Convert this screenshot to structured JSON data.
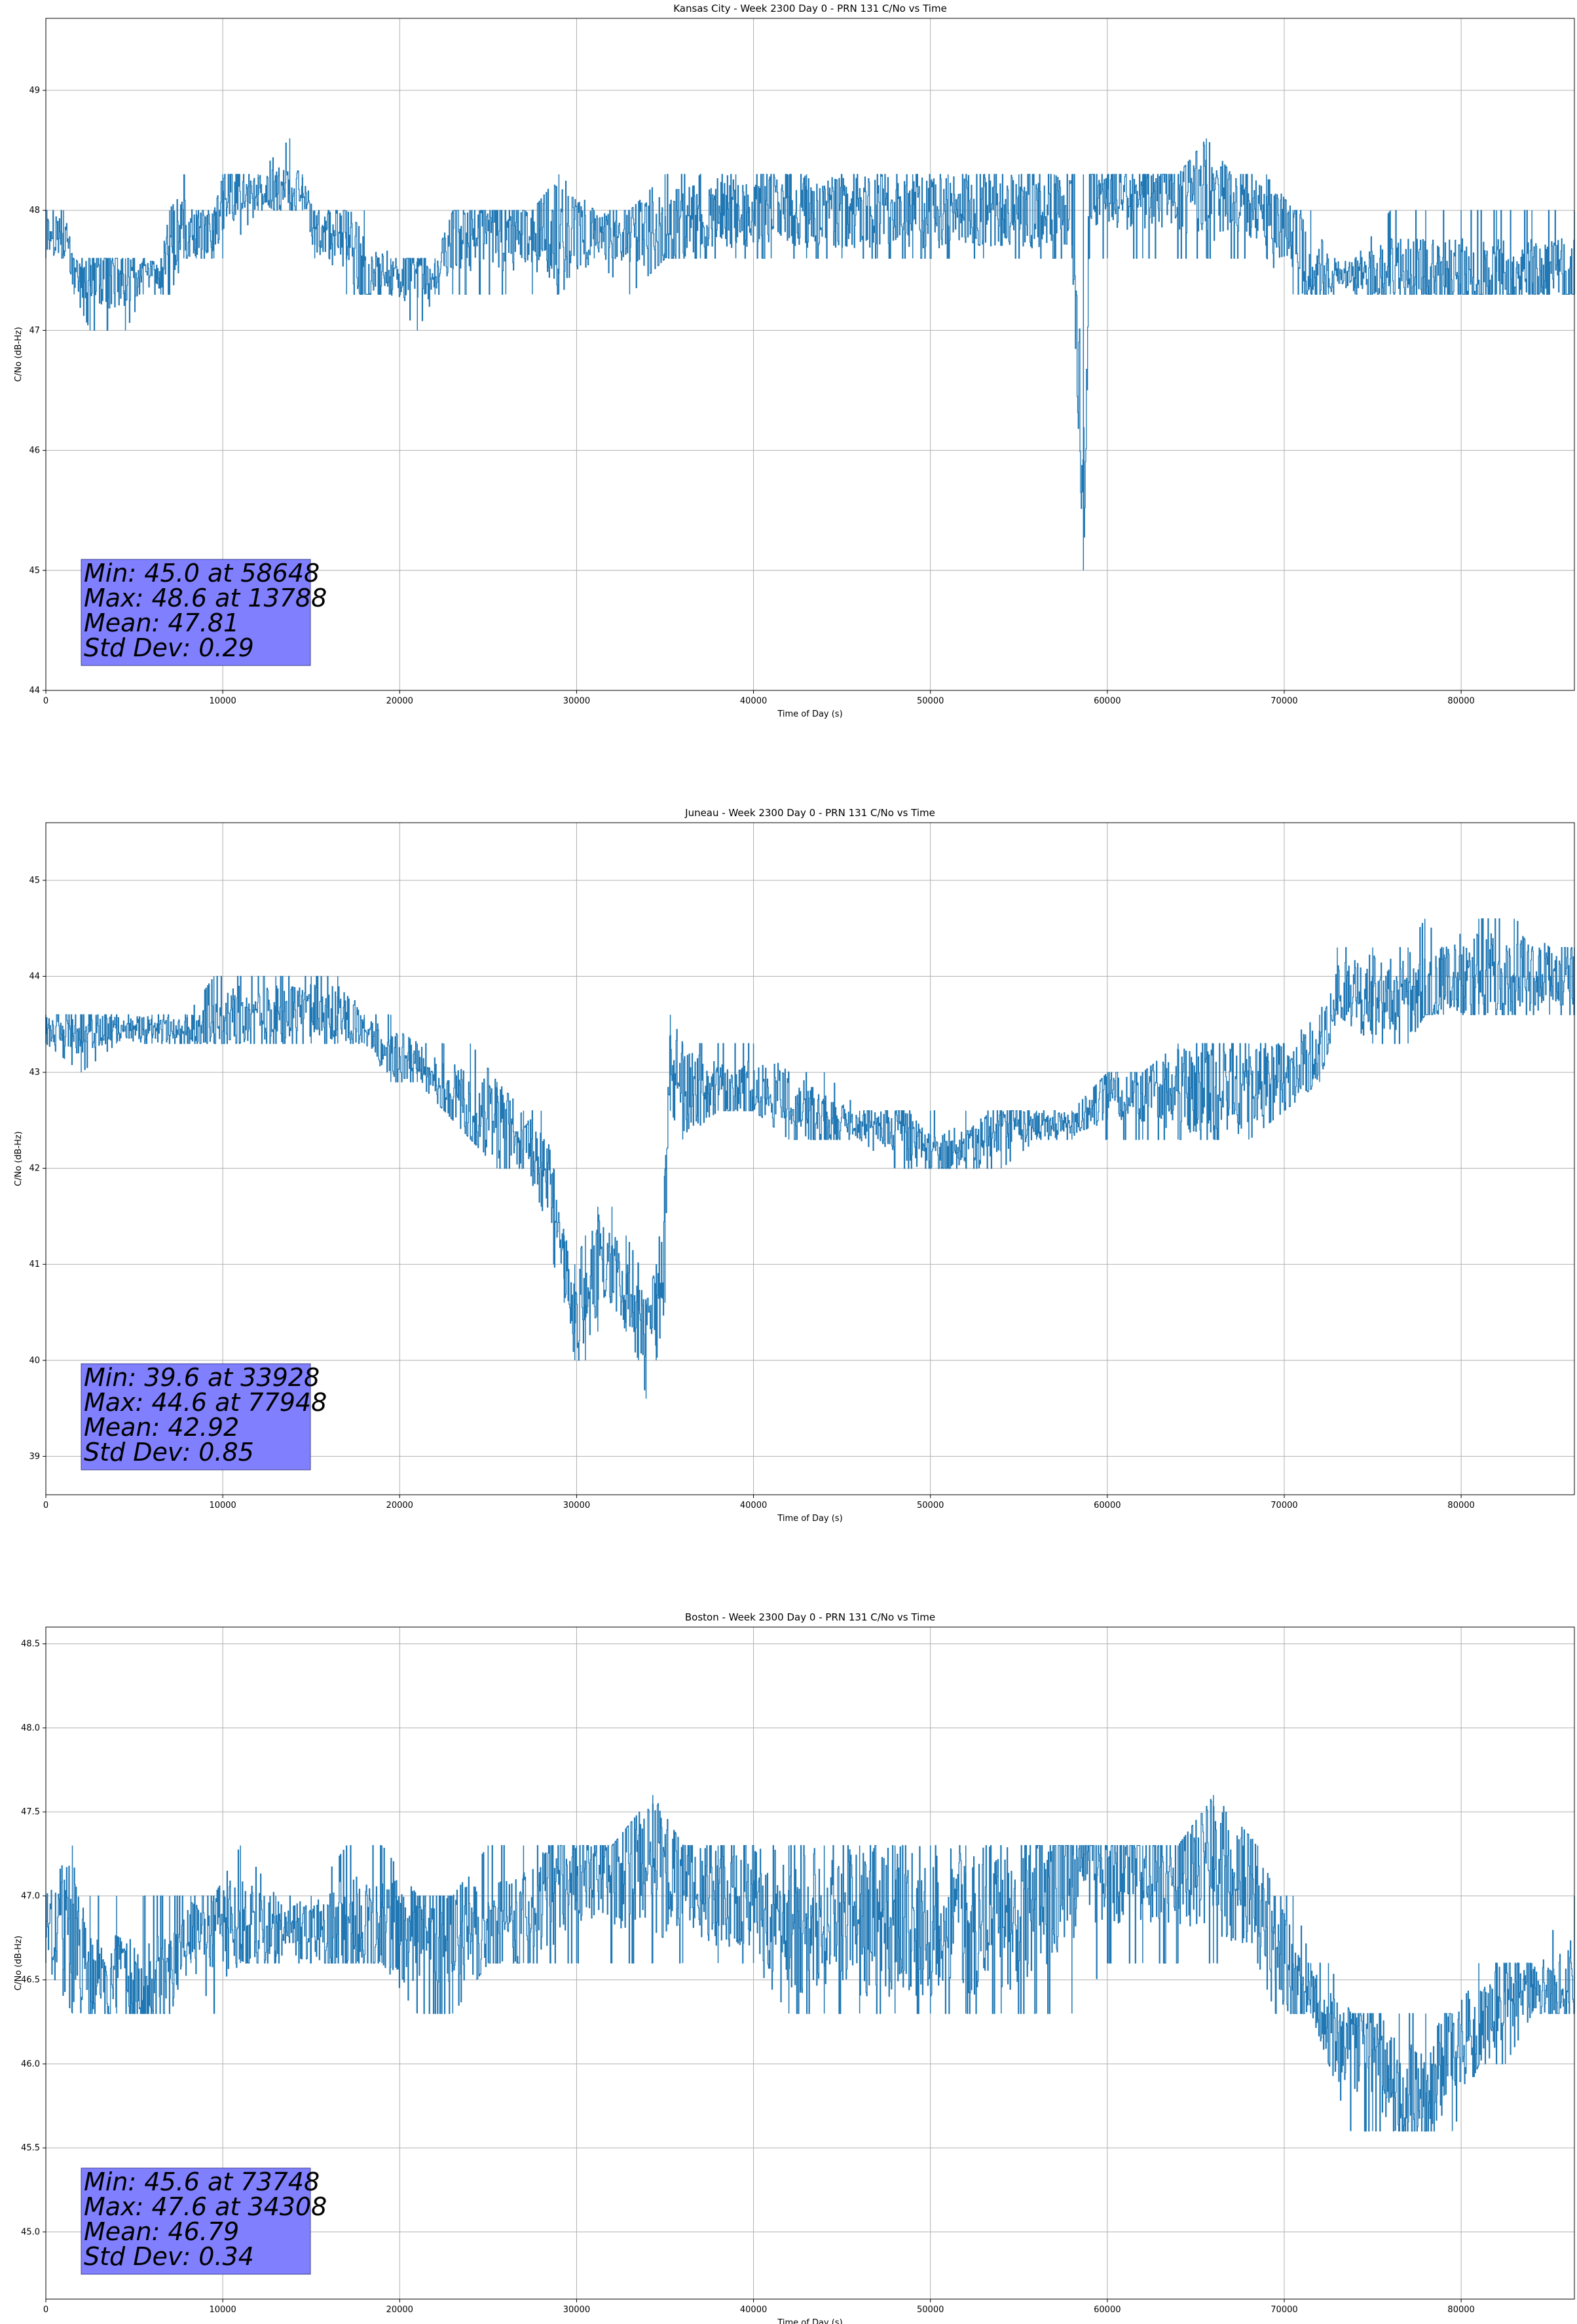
{
  "figure": {
    "background": "#ffffff",
    "line_color": "#1f77b4",
    "stats_box_color": "#8080ff",
    "grid": true
  },
  "chart_data": [
    {
      "type": "line",
      "title": "Kansas City - Week 2300 Day 0 - PRN 131 C/No vs Time",
      "xlabel": "Time of Day (s)",
      "ylabel": "C/No (dB-Hz)",
      "xlim": [
        0,
        86400
      ],
      "ylim": [
        44,
        49.6
      ],
      "xticks": [
        0,
        10000,
        20000,
        30000,
        40000,
        50000,
        60000,
        70000,
        80000
      ],
      "xtick_labels": [
        "0",
        "10000",
        "20000",
        "30000",
        "40000",
        "50000",
        "60000",
        "70000",
        "80000"
      ],
      "yticks": [
        44,
        45,
        46,
        47,
        48,
        49
      ],
      "ytick_labels": [
        "44",
        "45",
        "46",
        "47",
        "48",
        "49"
      ],
      "stats": [
        "Min: 45.0 at 58648",
        "Max: 48.6 at 13788",
        "Mean: 47.81",
        "Std Dev: 0.29"
      ],
      "series": [
        {
          "x": [
            0,
            1000,
            1600,
            2500,
            3500,
            4500,
            5500,
            6500,
            7000,
            7800,
            8500,
            9500,
            10000,
            12000,
            13788,
            14500,
            15200,
            16000,
            17000,
            18000,
            19500,
            21000,
            22000,
            23000,
            24500,
            26000,
            27500,
            29000,
            31000,
            33000,
            35000,
            37000,
            39000,
            41000,
            43000,
            45000,
            47000,
            49000,
            51000,
            53000,
            55000,
            57000,
            58000,
            58648,
            59000,
            60000,
            62000,
            64000,
            65600,
            67000,
            69000,
            70500,
            71500,
            72500,
            74000,
            76000,
            78000,
            80000,
            82000,
            84000,
            86400
          ],
          "y": [
            47.8,
            47.8,
            47.45,
            47.45,
            47.45,
            47.45,
            47.45,
            47.45,
            47.8,
            47.8,
            47.8,
            47.8,
            48.15,
            48.15,
            48.15,
            48.15,
            47.8,
            47.8,
            47.8,
            47.45,
            47.45,
            47.45,
            47.45,
            47.8,
            47.8,
            47.8,
            47.8,
            47.8,
            47.8,
            47.8,
            47.8,
            48.0,
            48.0,
            48.0,
            48.0,
            48.0,
            48.0,
            48.0,
            48.0,
            48.0,
            48.0,
            48.0,
            48.0,
            45.0,
            48.15,
            48.15,
            48.15,
            48.15,
            48.15,
            48.15,
            48.0,
            47.8,
            47.45,
            47.45,
            47.45,
            47.45,
            47.45,
            47.45,
            47.45,
            47.45,
            47.45
          ],
          "lo": [
            47.6,
            47.6,
            47.3,
            47.0,
            47.0,
            47.0,
            47.3,
            47.3,
            47.3,
            47.6,
            47.6,
            47.6,
            47.6,
            48.0,
            48.0,
            48.0,
            47.6,
            47.6,
            47.3,
            47.3,
            47.3,
            47.0,
            47.3,
            47.3,
            47.3,
            47.3,
            47.3,
            47.3,
            47.6,
            47.3,
            47.6,
            47.6,
            47.6,
            47.6,
            47.6,
            47.6,
            47.6,
            47.6,
            47.6,
            47.6,
            47.6,
            47.6,
            47.6,
            45.0,
            47.6,
            47.6,
            47.6,
            47.6,
            47.6,
            47.6,
            47.6,
            47.3,
            47.3,
            47.3,
            47.3,
            47.3,
            47.3,
            47.3,
            47.3,
            47.3,
            47.3
          ],
          "hi": [
            48.0,
            48.0,
            47.6,
            47.6,
            47.6,
            47.6,
            47.6,
            47.6,
            48.0,
            48.3,
            48.0,
            48.0,
            48.3,
            48.3,
            48.6,
            48.3,
            48.0,
            48.0,
            48.0,
            48.0,
            47.6,
            47.6,
            47.6,
            48.0,
            48.0,
            48.0,
            48.0,
            48.3,
            48.0,
            48.0,
            48.3,
            48.3,
            48.3,
            48.3,
            48.3,
            48.3,
            48.3,
            48.3,
            48.3,
            48.3,
            48.3,
            48.3,
            48.3,
            48.3,
            48.3,
            48.3,
            48.3,
            48.3,
            48.6,
            48.3,
            48.3,
            48.0,
            48.0,
            47.6,
            47.6,
            48.0,
            48.0,
            48.0,
            48.0,
            48.0,
            48.0
          ]
        }
      ]
    },
    {
      "type": "line",
      "title": "Juneau - Week 2300 Day 0 - PRN 131 C/No vs Time",
      "xlabel": "Time of Day (s)",
      "ylabel": "C/No (dB-Hz)",
      "xlim": [
        0,
        86400
      ],
      "ylim": [
        38.6,
        45.6
      ],
      "xticks": [
        0,
        10000,
        20000,
        30000,
        40000,
        50000,
        60000,
        70000,
        80000
      ],
      "xtick_labels": [
        "0",
        "10000",
        "20000",
        "30000",
        "40000",
        "50000",
        "60000",
        "70000",
        "80000"
      ],
      "yticks": [
        39,
        40,
        41,
        42,
        43,
        44,
        45
      ],
      "ytick_labels": [
        "39",
        "40",
        "41",
        "42",
        "43",
        "44",
        "45"
      ],
      "stats": [
        "Min: 39.6 at 33928",
        "Max: 44.6 at 77948",
        "Mean: 42.92",
        "Std Dev: 0.85"
      ],
      "series": [
        {
          "x": [
            0,
            2000,
            4000,
            6000,
            8000,
            9500,
            11000,
            13000,
            15000,
            16500,
            18000,
            19500,
            21000,
            22500,
            24000,
            25500,
            27000,
            28000,
            28700,
            29300,
            29900,
            30500,
            31200,
            32000,
            32800,
            33500,
            33928,
            34500,
            35000,
            35300,
            36000,
            38000,
            40000,
            42000,
            44000,
            46000,
            48000,
            50000,
            52000,
            54000,
            56000,
            58000,
            60000,
            62000,
            64000,
            66000,
            68000,
            70000,
            72000,
            73000,
            75000,
            77000,
            77948,
            79000,
            81000,
            83000,
            85000,
            86400
          ],
          "y": [
            43.45,
            43.45,
            43.45,
            43.45,
            43.45,
            43.45,
            43.6,
            43.6,
            43.6,
            43.6,
            43.45,
            43.15,
            43.15,
            42.8,
            42.6,
            42.45,
            42.3,
            42.0,
            41.5,
            41.0,
            40.6,
            40.6,
            41.0,
            41.0,
            40.6,
            40.3,
            40.3,
            40.6,
            41.5,
            43.3,
            42.8,
            42.8,
            42.8,
            42.8,
            42.45,
            42.45,
            42.45,
            42.15,
            42.15,
            42.45,
            42.45,
            42.45,
            42.8,
            42.8,
            42.8,
            42.8,
            42.8,
            43.0,
            43.15,
            43.8,
            43.8,
            43.8,
            43.8,
            44.0,
            44.0,
            44.0,
            44.0,
            44.0
          ],
          "lo": [
            43.3,
            43.0,
            43.3,
            43.3,
            43.3,
            43.3,
            43.3,
            43.3,
            43.3,
            43.3,
            43.3,
            42.9,
            42.9,
            42.6,
            42.3,
            42.0,
            42.0,
            41.6,
            41.0,
            40.6,
            40.0,
            40.0,
            40.3,
            40.6,
            40.3,
            40.0,
            39.6,
            40.0,
            40.6,
            42.6,
            42.3,
            42.6,
            42.6,
            42.3,
            42.3,
            42.3,
            42.0,
            42.0,
            42.0,
            42.0,
            42.3,
            42.3,
            42.3,
            42.3,
            42.3,
            42.3,
            42.3,
            42.6,
            42.9,
            43.6,
            43.3,
            43.3,
            43.6,
            43.6,
            43.6,
            43.6,
            43.6,
            43.6
          ],
          "hi": [
            43.6,
            43.6,
            43.6,
            43.6,
            43.6,
            44.0,
            44.0,
            44.0,
            44.0,
            44.0,
            43.6,
            43.6,
            43.3,
            43.3,
            43.3,
            42.9,
            42.6,
            42.6,
            42.0,
            41.3,
            41.0,
            41.3,
            41.6,
            41.6,
            41.3,
            41.0,
            40.6,
            41.0,
            42.0,
            43.6,
            43.3,
            43.3,
            43.3,
            43.0,
            43.0,
            42.6,
            42.6,
            42.6,
            42.6,
            42.6,
            42.6,
            42.6,
            43.0,
            43.0,
            43.3,
            43.3,
            43.3,
            43.3,
            43.6,
            44.3,
            44.3,
            44.3,
            44.6,
            44.3,
            44.6,
            44.6,
            44.3,
            44.3
          ]
        }
      ]
    },
    {
      "type": "line",
      "title": "Boston - Week 2300 Day 0 - PRN 131 C/No vs Time",
      "xlabel": "Time of Day (s)",
      "ylabel": "C/No (dB-Hz)",
      "xlim": [
        0,
        86400
      ],
      "ylim": [
        44.6,
        48.6
      ],
      "xticks": [
        0,
        10000,
        20000,
        30000,
        40000,
        50000,
        60000,
        70000,
        80000
      ],
      "xtick_labels": [
        "0",
        "10000",
        "20000",
        "30000",
        "40000",
        "50000",
        "60000",
        "70000",
        "80000"
      ],
      "yticks": [
        45.0,
        45.5,
        46.0,
        46.5,
        47.0,
        47.5,
        48.0,
        48.5
      ],
      "ytick_labels": [
        "45.0",
        "45.5",
        "46.0",
        "46.5",
        "47.0",
        "47.5",
        "48.0",
        "48.5"
      ],
      "stats": [
        "Min: 45.6 at 73748",
        "Max: 47.6 at 34308",
        "Mean: 46.79",
        "Std Dev: 0.34"
      ],
      "series": [
        {
          "x": [
            0,
            1500,
            2500,
            4000,
            5500,
            7000,
            8200,
            9500,
            11000,
            13000,
            15000,
            17000,
            19000,
            21000,
            23000,
            25000,
            27000,
            28500,
            30000,
            32000,
            34308,
            36000,
            38000,
            40000,
            42000,
            44000,
            46000,
            48000,
            50000,
            52000,
            54000,
            56000,
            58000,
            60000,
            62000,
            64000,
            66000,
            68500,
            69500,
            70500,
            71500,
            72500,
            73748,
            75000,
            76500,
            78000,
            79500,
            81000,
            82500,
            84000,
            86400
          ],
          "y": [
            46.8,
            46.8,
            46.45,
            46.45,
            46.45,
            46.45,
            46.8,
            46.8,
            46.8,
            46.8,
            46.8,
            46.8,
            46.8,
            46.8,
            46.8,
            46.8,
            46.85,
            47.0,
            47.15,
            47.15,
            47.15,
            47.15,
            47.0,
            47.0,
            46.85,
            46.85,
            46.85,
            46.85,
            46.85,
            46.85,
            46.85,
            47.0,
            47.15,
            47.15,
            47.15,
            47.15,
            47.15,
            47.0,
            46.8,
            46.45,
            46.45,
            46.15,
            46.15,
            46.15,
            45.8,
            45.8,
            46.15,
            46.15,
            46.45,
            46.45,
            46.45
          ],
          "lo": [
            46.6,
            46.3,
            46.3,
            46.3,
            46.3,
            46.3,
            46.6,
            46.3,
            46.6,
            46.6,
            46.6,
            46.6,
            46.6,
            46.3,
            46.3,
            46.6,
            46.6,
            46.6,
            46.6,
            46.6,
            46.6,
            46.6,
            46.6,
            46.6,
            46.3,
            46.3,
            46.3,
            46.3,
            46.3,
            46.3,
            46.3,
            46.3,
            46.3,
            46.6,
            46.6,
            46.6,
            46.6,
            46.6,
            46.3,
            46.3,
            46.3,
            46.0,
            45.6,
            45.6,
            45.6,
            45.6,
            45.6,
            46.0,
            46.0,
            46.3,
            46.3
          ],
          "hi": [
            47.0,
            47.3,
            47.0,
            47.0,
            47.0,
            47.0,
            47.0,
            47.0,
            47.3,
            47.0,
            47.0,
            47.3,
            47.3,
            47.0,
            47.0,
            47.3,
            47.3,
            47.3,
            47.3,
            47.3,
            47.6,
            47.3,
            47.3,
            47.3,
            47.3,
            47.3,
            47.3,
            47.3,
            47.3,
            47.3,
            47.3,
            47.3,
            47.3,
            47.3,
            47.3,
            47.3,
            47.6,
            47.3,
            47.0,
            47.0,
            46.6,
            46.6,
            46.3,
            46.3,
            46.3,
            46.3,
            46.3,
            46.6,
            46.6,
            46.6,
            47.0
          ]
        }
      ]
    }
  ]
}
